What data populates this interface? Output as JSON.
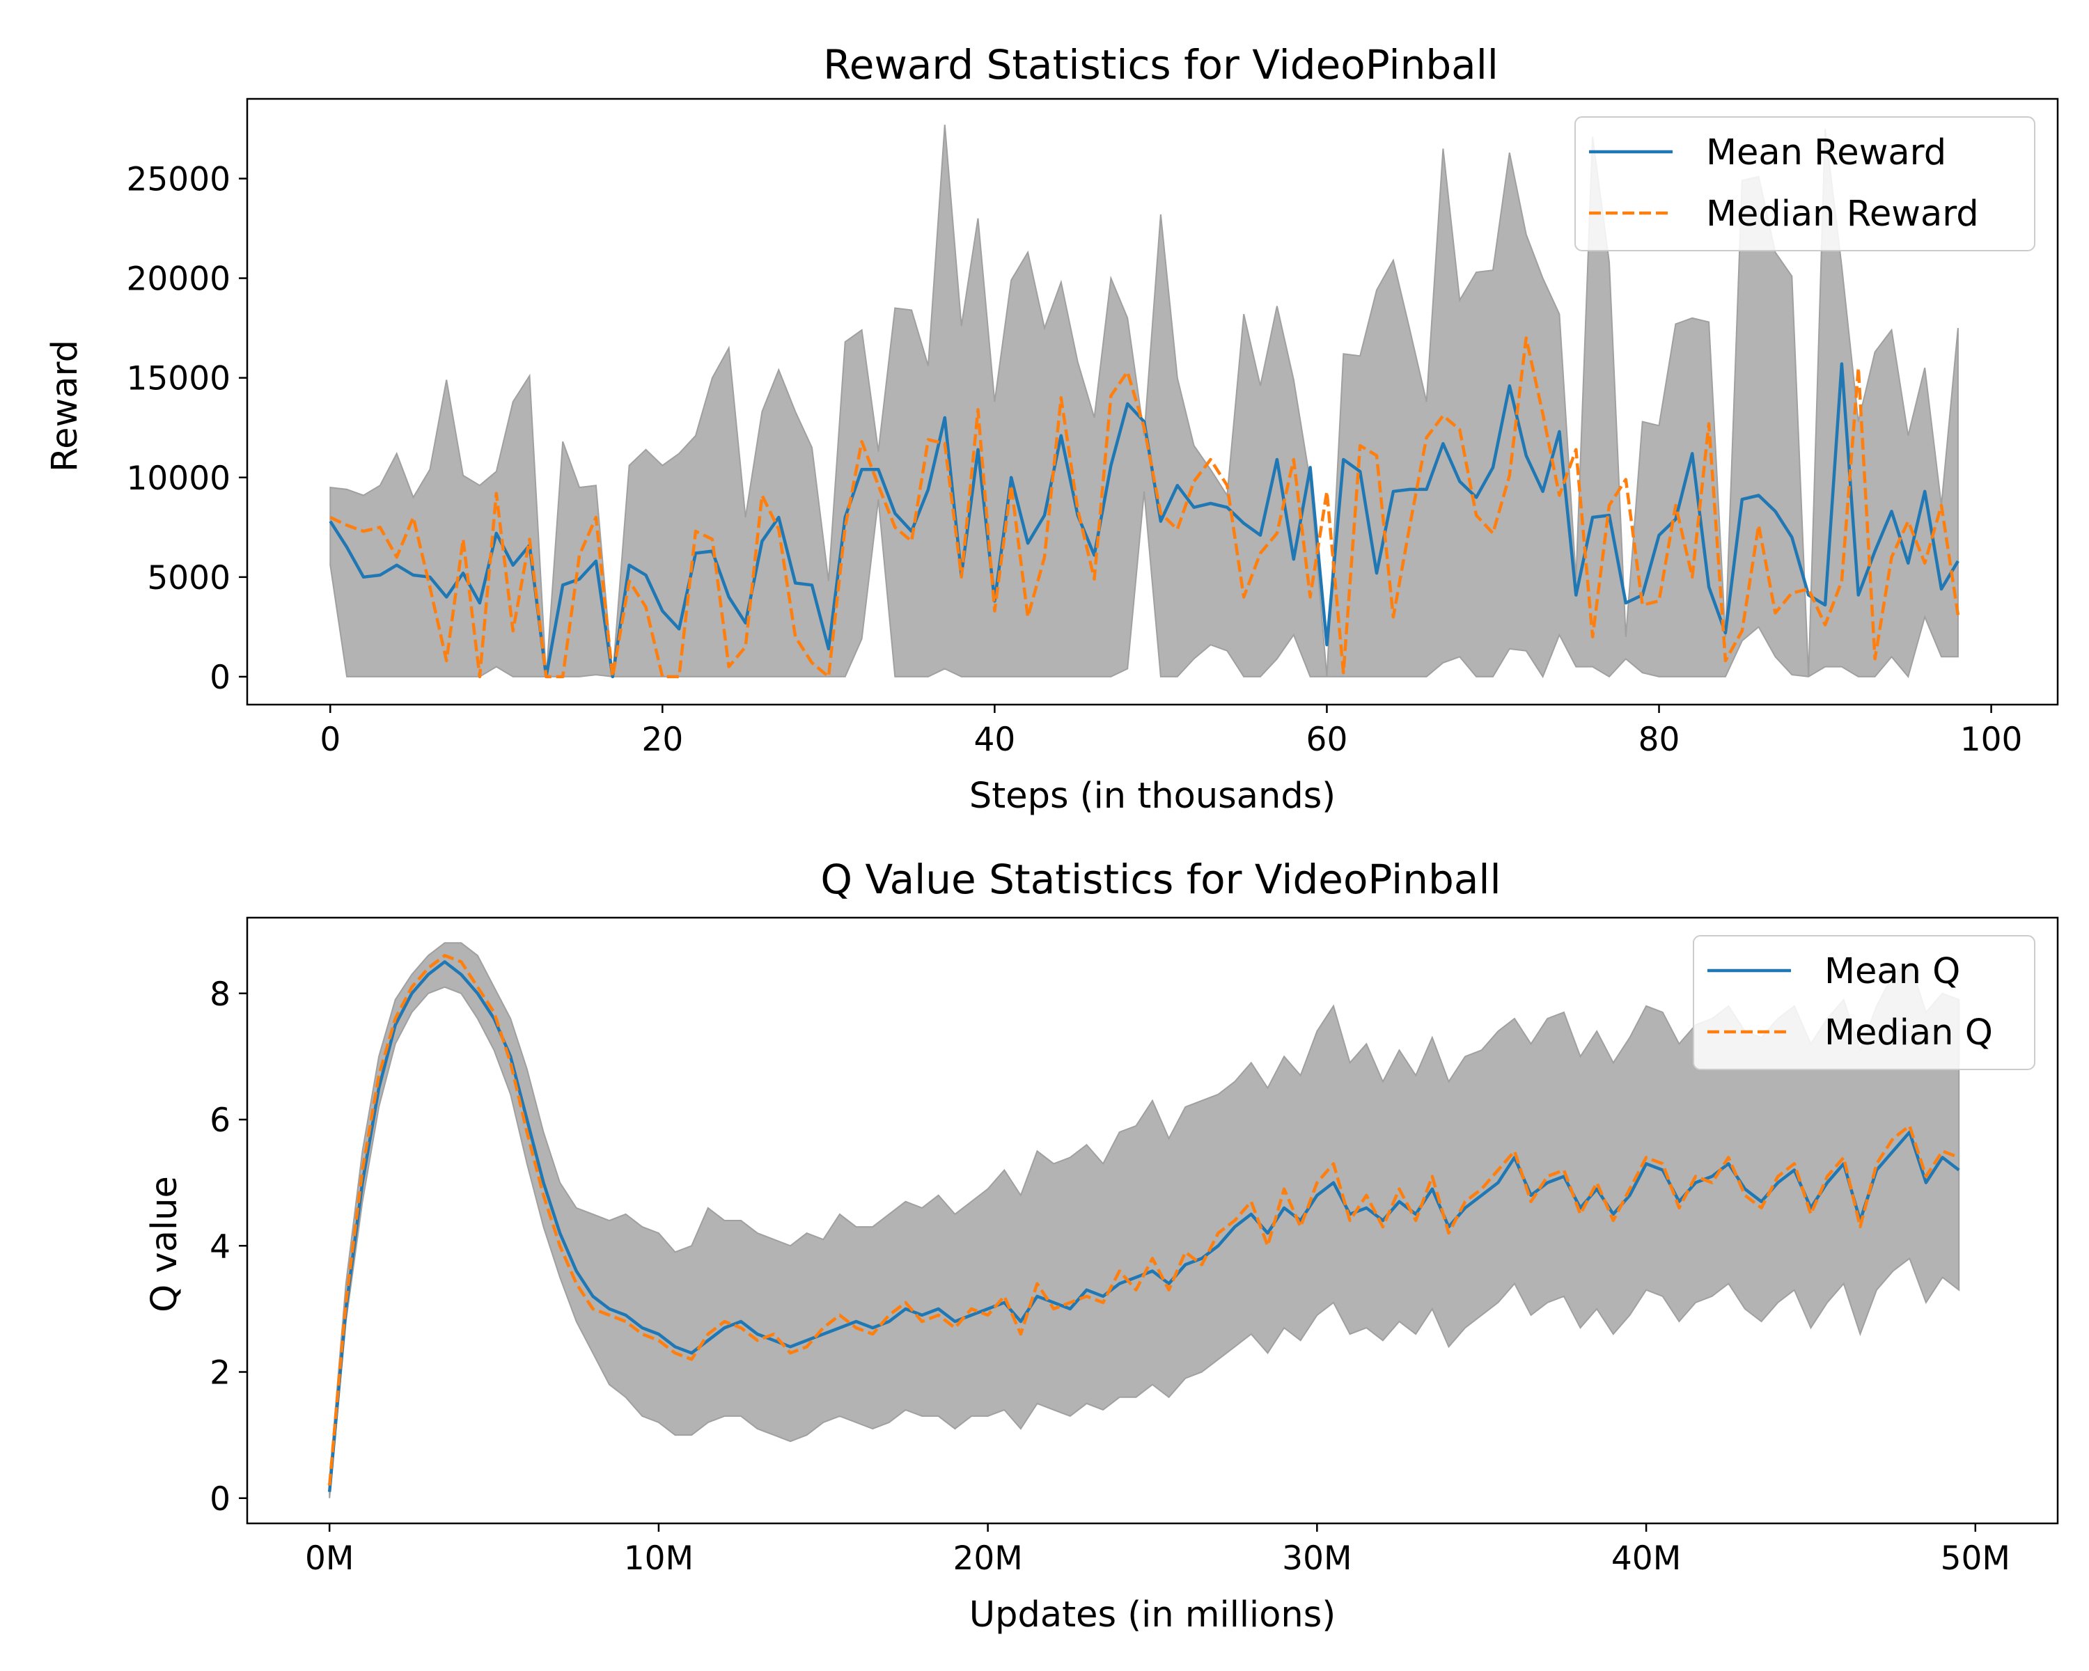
{
  "colors": {
    "mean": "#1f77b4",
    "median": "#ff7f0e",
    "band_fill": "#b3b3b3",
    "band_edge": "#a0a0a0"
  },
  "chart_data": [
    {
      "type": "line",
      "title": "Reward Statistics for VideoPinball",
      "xlabel": "Steps (in thousands)",
      "ylabel": "Reward",
      "xlim": [
        -5,
        104
      ],
      "ylim": [
        -1400,
        29000
      ],
      "x_ticks": [
        0,
        20,
        40,
        60,
        80,
        100
      ],
      "x_tick_labels": [
        "0",
        "20",
        "40",
        "60",
        "80",
        "100"
      ],
      "y_ticks": [
        0,
        5000,
        10000,
        15000,
        20000,
        25000
      ],
      "y_tick_labels": [
        "0",
        "5000",
        "10000",
        "15000",
        "20000",
        "25000"
      ],
      "legend": {
        "position": "upper right",
        "entries": [
          "Mean Reward",
          "Median Reward"
        ]
      },
      "grid": false,
      "band": "min-max range (shaded)",
      "series": [
        {
          "name": "Mean Reward",
          "style": "solid",
          "color": "#1f77b4",
          "values": [
            7800,
            6500,
            5000,
            5100,
            5600,
            5100,
            5000,
            4000,
            5200,
            3700,
            7200,
            5600,
            6600,
            0,
            4600,
            4900,
            5800,
            0,
            5600,
            5100,
            3300,
            2400,
            6200,
            6300,
            4000,
            2700,
            6800,
            8000,
            4700,
            4600,
            1400,
            8000,
            10400,
            10400,
            8200,
            7300,
            9400,
            13000,
            5100,
            11400,
            3800,
            10000,
            6700,
            8100,
            12100,
            8100,
            6100,
            10600,
            13700,
            12800,
            7800,
            9600,
            8500,
            8700,
            8500,
            7700,
            7100,
            10900,
            5900,
            10500,
            1600,
            10900,
            10300,
            5200,
            9300,
            9400,
            9400,
            11700,
            9800,
            9000,
            10500,
            14600,
            11100,
            9300,
            12300,
            4100,
            8000,
            8100,
            3700,
            4100,
            7100,
            7900,
            11200,
            4500,
            2200,
            8900,
            9100,
            8300,
            7000,
            4100,
            3600,
            15700,
            4100,
            6300,
            8300,
            5700,
            9300,
            4400,
            5800
          ]
        },
        {
          "name": "Median Reward",
          "style": "dashed",
          "color": "#ff7f0e",
          "values": [
            8000,
            7600,
            7300,
            7500,
            6000,
            8000,
            4500,
            800,
            6900,
            0,
            9200,
            2300,
            6900,
            0,
            0,
            6100,
            8000,
            0,
            4800,
            3500,
            0,
            0,
            7300,
            6900,
            500,
            1500,
            9100,
            7400,
            2000,
            700,
            0,
            7500,
            11800,
            9600,
            7500,
            6800,
            11900,
            11700,
            5000,
            13400,
            3300,
            9600,
            3000,
            6000,
            14000,
            8400,
            4900,
            14100,
            15300,
            12500,
            8200,
            7400,
            9800,
            10900,
            9600,
            4000,
            6200,
            7200,
            10900,
            4000,
            9300,
            200,
            11600,
            11100,
            3000,
            7600,
            12000,
            13100,
            12400,
            8100,
            7200,
            10100,
            17000,
            13200,
            9100,
            11400,
            2000,
            8600,
            9900,
            3600,
            3800,
            8600,
            5000,
            12700,
            800,
            2300,
            7600,
            3200,
            4200,
            4400,
            2600,
            4800,
            15500,
            900,
            6000,
            7800,
            5700,
            8600,
            3100,
            3500
          ]
        },
        {
          "name": "Max",
          "style": "band-upper",
          "color": "#b3b3b3",
          "values": [
            9500,
            9400,
            9100,
            9600,
            11200,
            9000,
            10400,
            14900,
            10100,
            9600,
            10300,
            13800,
            15100,
            0,
            11800,
            9500,
            9600,
            0,
            10600,
            11400,
            10600,
            11200,
            12100,
            15000,
            16500,
            8000,
            13300,
            15400,
            13300,
            11500,
            4800,
            16800,
            17400,
            11300,
            18500,
            18400,
            15600,
            27700,
            17600,
            23000,
            13800,
            19900,
            21300,
            17500,
            19800,
            15800,
            13000,
            20000,
            18000,
            12100,
            23200,
            15000,
            11600,
            10400,
            9100,
            18200,
            14600,
            18600,
            14900,
            9800,
            0,
            16200,
            16100,
            19400,
            20900,
            17400,
            13800,
            26500,
            18900,
            20300,
            20400,
            26300,
            22200,
            20000,
            18200,
            4900,
            27100,
            20800,
            2000,
            12800,
            12600,
            17700,
            18000,
            17800,
            2000,
            24900,
            25100,
            21300,
            20100,
            0,
            27500,
            20600,
            12800,
            16300,
            17400,
            12100,
            15500,
            8600,
            17500
          ]
        },
        {
          "name": "Min",
          "style": "band-lower",
          "color": "#b3b3b3",
          "values": [
            5600,
            0,
            0,
            0,
            0,
            0,
            0,
            0,
            0,
            0,
            500,
            0,
            0,
            0,
            0,
            0,
            100,
            0,
            0,
            0,
            0,
            0,
            0,
            0,
            0,
            0,
            0,
            0,
            0,
            0,
            0,
            0,
            1900,
            8900,
            0,
            0,
            0,
            400,
            0,
            0,
            0,
            0,
            0,
            0,
            0,
            0,
            0,
            0,
            400,
            9300,
            0,
            0,
            900,
            1600,
            1300,
            0,
            0,
            900,
            2100,
            0,
            0,
            0,
            0,
            0,
            0,
            0,
            0,
            700,
            1000,
            0,
            0,
            1400,
            1300,
            0,
            2100,
            500,
            500,
            0,
            900,
            200,
            0,
            0,
            0,
            0,
            0,
            1800,
            2500,
            1000,
            100,
            0,
            500,
            500,
            0,
            0,
            1000,
            0,
            3000,
            1000,
            1000
          ]
        }
      ]
    },
    {
      "type": "line",
      "title": "Q Value Statistics for VideoPinball",
      "xlabel": "Updates (in millions)",
      "ylabel": "Q value",
      "xlim": [
        -2.5,
        52.5
      ],
      "ylim": [
        -0.4,
        9.2
      ],
      "x_ticks": [
        0,
        10,
        20,
        30,
        40,
        50
      ],
      "x_tick_labels": [
        "0M",
        "10M",
        "20M",
        "30M",
        "40M",
        "50M"
      ],
      "y_ticks": [
        0,
        2,
        4,
        6,
        8
      ],
      "y_tick_labels": [
        "0",
        "2",
        "4",
        "6",
        "8"
      ],
      "legend": {
        "position": "upper right",
        "entries": [
          "Mean Q",
          "Median Q"
        ]
      },
      "grid": false,
      "band": "min-max range (shaded)",
      "x": [
        0,
        0.5,
        1,
        1.5,
        2,
        2.5,
        3,
        3.5,
        4,
        4.5,
        5,
        5.5,
        6,
        6.5,
        7,
        7.5,
        8,
        8.5,
        9,
        9.5,
        10,
        10.5,
        11,
        11.5,
        12,
        12.5,
        13,
        13.5,
        14,
        14.5,
        15,
        15.5,
        16,
        16.5,
        17,
        17.5,
        18,
        18.5,
        19,
        19.5,
        20,
        20.5,
        21,
        21.5,
        22,
        22.5,
        23,
        23.5,
        24,
        24.5,
        25,
        25.5,
        26,
        26.5,
        27,
        27.5,
        28,
        28.5,
        29,
        29.5,
        30,
        30.5,
        31,
        31.5,
        32,
        32.5,
        33,
        33.5,
        34,
        34.5,
        35,
        35.5,
        36,
        36.5,
        37,
        37.5,
        38,
        38.5,
        39,
        39.5,
        40,
        40.5,
        41,
        41.5,
        42,
        42.5,
        43,
        43.5,
        44,
        44.5,
        45,
        45.5,
        46,
        46.5,
        47,
        47.5,
        48,
        48.5,
        49,
        49.5
      ],
      "series": [
        {
          "name": "Mean Q",
          "style": "solid",
          "color": "#1f77b4",
          "values": [
            0.1,
            3.0,
            5.0,
            6.5,
            7.5,
            8.0,
            8.3,
            8.5,
            8.3,
            8.0,
            7.6,
            7.0,
            6.0,
            5.0,
            4.2,
            3.6,
            3.2,
            3.0,
            2.9,
            2.7,
            2.6,
            2.4,
            2.3,
            2.5,
            2.7,
            2.8,
            2.6,
            2.5,
            2.4,
            2.5,
            2.6,
            2.7,
            2.8,
            2.7,
            2.8,
            3.0,
            2.9,
            3.0,
            2.8,
            2.9,
            3.0,
            3.1,
            2.8,
            3.2,
            3.1,
            3.0,
            3.3,
            3.2,
            3.4,
            3.5,
            3.6,
            3.4,
            3.7,
            3.8,
            4.0,
            4.3,
            4.5,
            4.2,
            4.6,
            4.4,
            4.8,
            5.0,
            4.5,
            4.6,
            4.4,
            4.7,
            4.5,
            4.9,
            4.3,
            4.6,
            4.8,
            5.0,
            5.4,
            4.8,
            5.0,
            5.1,
            4.6,
            4.9,
            4.5,
            4.8,
            5.3,
            5.2,
            4.7,
            5.0,
            5.1,
            5.3,
            4.9,
            4.7,
            5.0,
            5.2,
            4.6,
            5.0,
            5.3,
            4.4,
            5.2,
            5.5,
            5.8,
            5.0,
            5.4,
            5.2
          ]
        },
        {
          "name": "Median Q",
          "style": "dashed",
          "color": "#ff7f0e",
          "values": [
            0.2,
            3.1,
            5.2,
            6.7,
            7.6,
            8.1,
            8.4,
            8.6,
            8.5,
            8.1,
            7.7,
            6.9,
            5.8,
            4.8,
            4.0,
            3.4,
            3.0,
            2.9,
            2.8,
            2.6,
            2.5,
            2.3,
            2.2,
            2.6,
            2.8,
            2.7,
            2.5,
            2.6,
            2.3,
            2.4,
            2.7,
            2.9,
            2.7,
            2.6,
            2.9,
            3.1,
            2.8,
            2.9,
            2.7,
            3.0,
            2.9,
            3.2,
            2.6,
            3.4,
            3.0,
            3.1,
            3.2,
            3.1,
            3.6,
            3.3,
            3.8,
            3.3,
            3.9,
            3.7,
            4.2,
            4.4,
            4.7,
            4.0,
            4.9,
            4.3,
            5.0,
            5.3,
            4.4,
            4.8,
            4.3,
            4.9,
            4.4,
            5.1,
            4.2,
            4.7,
            4.9,
            5.2,
            5.5,
            4.7,
            5.1,
            5.2,
            4.5,
            5.0,
            4.4,
            4.9,
            5.4,
            5.3,
            4.6,
            5.1,
            5.0,
            5.4,
            4.8,
            4.6,
            5.1,
            5.3,
            4.5,
            5.1,
            5.4,
            4.3,
            5.3,
            5.7,
            5.9,
            5.1,
            5.5,
            5.4
          ]
        },
        {
          "name": "Max",
          "style": "band-upper",
          "color": "#b3b3b3",
          "values": [
            0.3,
            3.4,
            5.5,
            7.0,
            7.9,
            8.3,
            8.6,
            8.8,
            8.8,
            8.6,
            8.1,
            7.6,
            6.8,
            5.8,
            5.0,
            4.6,
            4.5,
            4.4,
            4.5,
            4.3,
            4.2,
            3.9,
            4.0,
            4.6,
            4.4,
            4.4,
            4.2,
            4.1,
            4.0,
            4.2,
            4.1,
            4.5,
            4.3,
            4.3,
            4.5,
            4.7,
            4.6,
            4.8,
            4.5,
            4.7,
            4.9,
            5.2,
            4.8,
            5.5,
            5.3,
            5.4,
            5.6,
            5.3,
            5.8,
            5.9,
            6.3,
            5.7,
            6.2,
            6.3,
            6.4,
            6.6,
            6.9,
            6.5,
            7.0,
            6.7,
            7.4,
            7.8,
            6.9,
            7.2,
            6.6,
            7.1,
            6.7,
            7.3,
            6.6,
            7.0,
            7.1,
            7.4,
            7.6,
            7.2,
            7.6,
            7.7,
            7.0,
            7.4,
            6.9,
            7.3,
            7.8,
            7.7,
            7.2,
            7.5,
            7.6,
            7.8,
            7.4,
            7.3,
            7.6,
            7.8,
            7.2,
            7.6,
            7.9,
            7.1,
            7.8,
            8.3,
            8.5,
            7.7,
            8.0,
            7.9
          ]
        },
        {
          "name": "Min",
          "style": "band-lower",
          "color": "#b3b3b3",
          "values": [
            0.0,
            2.8,
            4.7,
            6.2,
            7.2,
            7.7,
            8.0,
            8.1,
            8.0,
            7.6,
            7.1,
            6.4,
            5.3,
            4.3,
            3.5,
            2.8,
            2.3,
            1.8,
            1.6,
            1.3,
            1.2,
            1.0,
            1.0,
            1.2,
            1.3,
            1.3,
            1.1,
            1.0,
            0.9,
            1.0,
            1.2,
            1.3,
            1.2,
            1.1,
            1.2,
            1.4,
            1.3,
            1.3,
            1.1,
            1.3,
            1.3,
            1.4,
            1.1,
            1.5,
            1.4,
            1.3,
            1.5,
            1.4,
            1.6,
            1.6,
            1.8,
            1.6,
            1.9,
            2.0,
            2.2,
            2.4,
            2.6,
            2.3,
            2.7,
            2.5,
            2.9,
            3.1,
            2.6,
            2.7,
            2.5,
            2.8,
            2.6,
            3.0,
            2.4,
            2.7,
            2.9,
            3.1,
            3.4,
            2.9,
            3.1,
            3.2,
            2.7,
            3.0,
            2.6,
            2.9,
            3.3,
            3.2,
            2.8,
            3.1,
            3.2,
            3.4,
            3.0,
            2.8,
            3.1,
            3.3,
            2.7,
            3.1,
            3.4,
            2.6,
            3.3,
            3.6,
            3.8,
            3.1,
            3.5,
            3.3
          ]
        }
      ]
    }
  ]
}
